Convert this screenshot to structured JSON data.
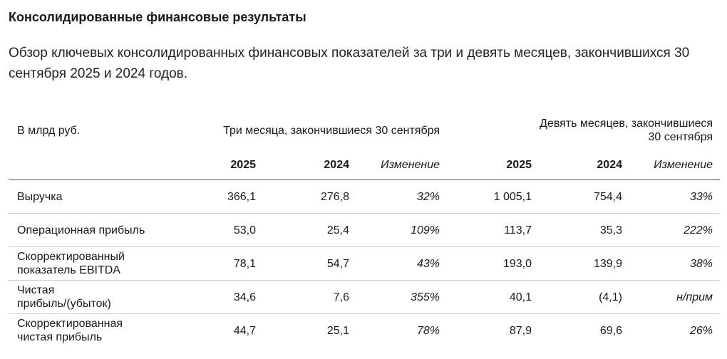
{
  "heading": {
    "title": "Консолидированные финансовые результаты",
    "intro": "Обзор ключевых консолидированных финансовых показателей за три и девять месяцев, закончившихся 30 сентября 2025 и 2024 годов."
  },
  "table": {
    "unit_label": "В млрд руб.",
    "period_three": "Три месяца, закончившиеся 30 сентября",
    "period_nine_line1": "Девять месяцев, закончившиеся",
    "period_nine_line2": "30 сентября",
    "columns": {
      "y1": "2025",
      "y2": "2024",
      "chg": "Изменение",
      "y3": "2025",
      "y4": "2024",
      "chg2": "Изменение"
    },
    "rows": [
      {
        "label1": "Выручка",
        "label2": "",
        "q2025": "366,1",
        "q2024": "276,8",
        "qchg": "32%",
        "n2025": "1 005,1",
        "n2024": "754,4",
        "nchg": "33%"
      },
      {
        "label1": "Операционная прибыль",
        "label2": "",
        "q2025": "53,0",
        "q2024": "25,4",
        "qchg": "109%",
        "n2025": "113,7",
        "n2024": "35,3",
        "nchg": "222%"
      },
      {
        "label1": "Скорректированный",
        "label2": "показатель EBITDA",
        "q2025": "78,1",
        "q2024": "54,7",
        "qchg": "43%",
        "n2025": "193,0",
        "n2024": "139,9",
        "nchg": "38%"
      },
      {
        "label1": "Чистая",
        "label2": "прибыль/(убыток)",
        "q2025": "34,6",
        "q2024": "7,6",
        "qchg": "355%",
        "n2025": "40,1",
        "n2024": "(4,1)",
        "nchg": "н/прим"
      },
      {
        "label1": "Скорректированная",
        "label2": "чистая прибыль",
        "q2025": "44,7",
        "q2024": "25,1",
        "qchg": "78%",
        "n2025": "87,9",
        "n2024": "69,6",
        "nchg": "26%"
      }
    ]
  }
}
